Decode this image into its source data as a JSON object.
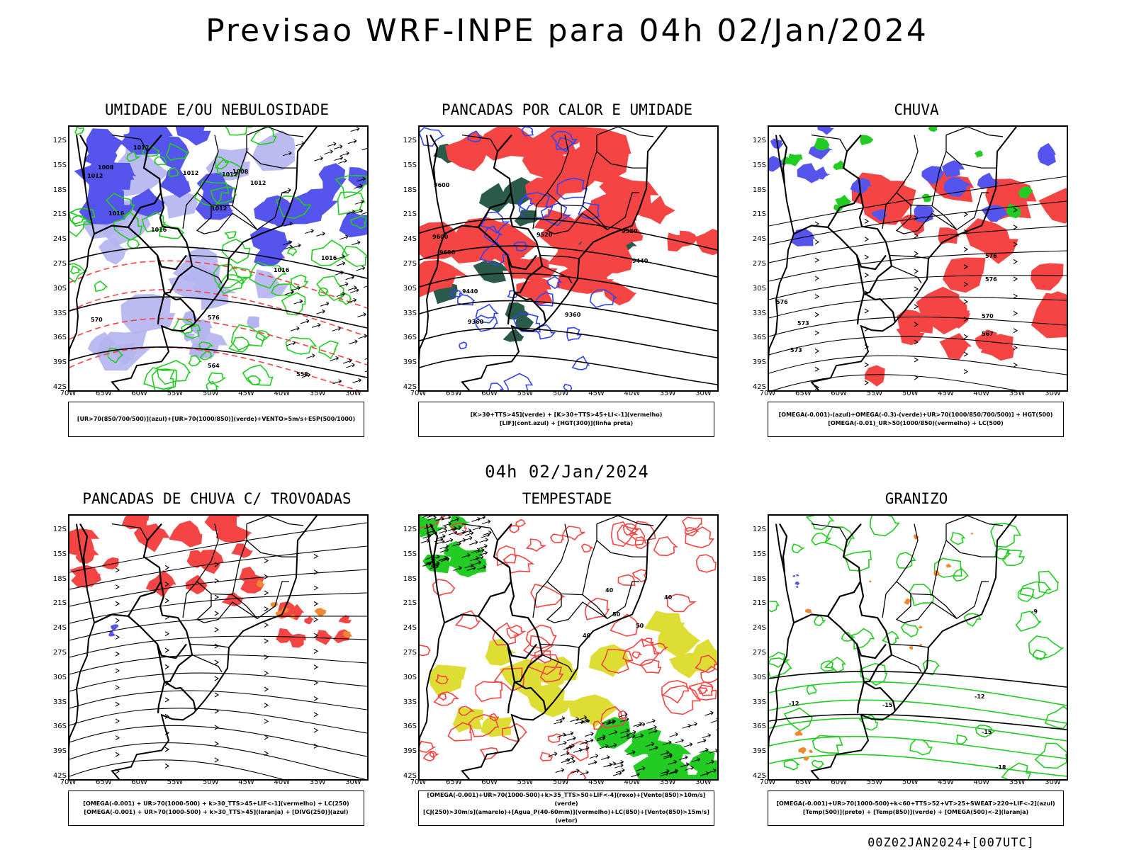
{
  "header": {
    "title": "Previsao WRF-INPE  para 04h 02/Jan/2024",
    "mid_title": "04h 02/Jan/2024",
    "footer": "00Z02JAN2024+[007UTC]"
  },
  "axes": {
    "lat_labels": [
      "12S",
      "15S",
      "18S",
      "21S",
      "24S",
      "27S",
      "30S",
      "33S",
      "36S",
      "39S",
      "42S"
    ],
    "lon_labels": [
      "70W",
      "65W",
      "60W",
      "55W",
      "50W",
      "45W",
      "40W",
      "35W",
      "30W"
    ]
  },
  "colors": {
    "blue": "#5555ee",
    "light_blue": "#b4b4f0",
    "green": "#22cc22",
    "red": "#f44444",
    "dark_teal": "#2a5a4a",
    "yellow": "#dddd33",
    "orange": "#ee8833"
  },
  "panels": [
    {
      "title": "UMIDADE E/OU NEBULOSIDADE",
      "legend": [
        "[UR>70(850/700/500)](azul)+[UR>70(1000/850)](verde)+VENTO>5m/s+ESP(500/1000)"
      ],
      "contour_labels": [
        "1012",
        "1008",
        "1012",
        "1012",
        "1012",
        "1008",
        "1012",
        "1016",
        "1016",
        "1012",
        "1016",
        "1016",
        "570",
        "576",
        "564",
        "558"
      ]
    },
    {
      "title": "PANCADAS POR CALOR E UMIDADE",
      "legend": [
        "[K>30+TTS>45](verde) + [K>30+TTS>45+LI<-1](vermelho)",
        "[LIF](cont.azul) + [HGT(300)](linha preta)"
      ],
      "contour_labels": [
        "9600",
        "9600",
        "9600",
        "9520",
        "9520",
        "9440",
        "9440",
        "9360",
        "9360"
      ]
    },
    {
      "title": "CHUVA",
      "legend": [
        "[OMEGA(-0.001)-(azul)+OMEGA(-0.3)-(verde)+UR>70(1000/850/700/500)] + HGT(500)",
        "[OMEGA(-0.01)_UR>50(1000/850)(vermelho) + LC(500)"
      ],
      "contour_labels": [
        "576",
        "576",
        "576",
        "573",
        "570",
        "567",
        "573"
      ]
    },
    {
      "title": "PANCADAS DE CHUVA C/ TROVOADAS",
      "legend": [
        "[OMEGA(-0.001) + UR>70(1000-500) + k>30_TTS>45+LIF<-1](vermelho) + LC(250)",
        "[OMEGA(-0.001) + UR>70(1000-500) + k>30_TTS>45](laranja) + [DIVG(250)](azul)"
      ],
      "contour_labels": []
    },
    {
      "title": "TEMPESTADE",
      "legend": [
        "[OMEGA(-0.001)+UR>70(1000-500)+k>35_TTS>50+LIF<-4](roxo)+[Vento(850)>10m/s](verde)",
        "[CJ(250)>30m/s](amarelo)+[Agua_P(40-60mm)](vermelho)+LC(850)+[Vento(850)>15m/s](vetor)"
      ],
      "contour_labels": [
        "40",
        "50",
        "40",
        "40",
        "50"
      ]
    },
    {
      "title": "GRANIZO",
      "legend": [
        "[OMEGA(-0.001)+UR>70(1000-500)+k<60+TTS>52+VT>25+SWEAT>220+LIF<-2](azul)",
        "[Temp(500)](preto) + [Temp(850)](verde) + [OMEGA(500)<-2](laranja)"
      ],
      "contour_labels": [
        "-12",
        "-12",
        "-15",
        "-15",
        "-18",
        "-9"
      ]
    }
  ]
}
